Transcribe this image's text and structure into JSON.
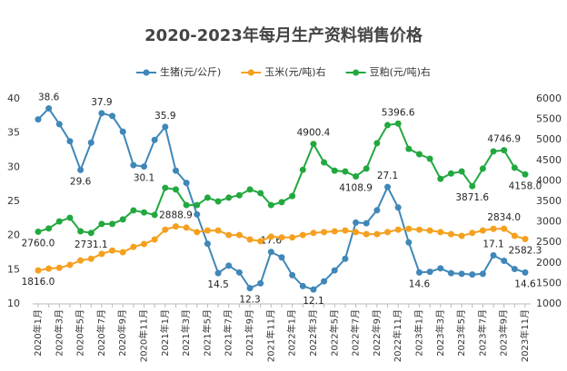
{
  "chart_data": {
    "type": "line",
    "title": "2020-2023年每月生产资料销售价格",
    "categories": [
      "2020年1月",
      null,
      "2020年3月",
      null,
      "2020年5月",
      null,
      "2020年7月",
      null,
      "2020年9月",
      null,
      "2020年11月",
      null,
      "2021年1月",
      null,
      "2021年3月",
      null,
      "2021年5月",
      null,
      "2021年7月",
      null,
      "2021年9月",
      null,
      "2021年11月",
      null,
      "2022年1月",
      null,
      "2022年3月",
      null,
      "2022年5月",
      null,
      "2022年7月",
      null,
      "2022年9月",
      null,
      "2022年11月",
      null,
      "2023年1月",
      null,
      "2023年3月",
      null,
      "2023年5月",
      null,
      "2023年7月",
      null,
      "2023年9月",
      null,
      "2023年11月"
    ],
    "ylim": [
      10,
      40
    ],
    "yticks": [
      10,
      15,
      20,
      25,
      30,
      35,
      40
    ],
    "y2lim": [
      1000,
      6000
    ],
    "y2ticks": [
      1000,
      1500,
      2000,
      2500,
      3000,
      3500,
      4000,
      4500,
      5000,
      5500,
      6000
    ],
    "grid": false,
    "legend": "top",
    "series": [
      {
        "name": "生猪(元/公斤)",
        "color": "#3f87b8",
        "axis": "y",
        "values": [
          37.0,
          38.6,
          36.3,
          33.8,
          29.6,
          33.6,
          37.9,
          37.5,
          35.2,
          30.3,
          30.1,
          34.0,
          35.9,
          29.5,
          27.7,
          23.1,
          18.8,
          14.5,
          15.6,
          14.6,
          12.3,
          13.0,
          17.6,
          16.8,
          14.2,
          12.6,
          12.1,
          13.3,
          14.9,
          16.6,
          21.9,
          21.8,
          23.7,
          27.1,
          24.1,
          19.0,
          14.6,
          14.7,
          15.2,
          14.5,
          14.4,
          14.3,
          14.4,
          17.1,
          16.3,
          15.1,
          14.6
        ],
        "value_labels": [
          null,
          "38.6",
          null,
          null,
          "29.6",
          null,
          "37.9",
          null,
          null,
          null,
          "30.1",
          null,
          "35.9",
          null,
          null,
          null,
          null,
          "14.5",
          null,
          null,
          "12.3",
          null,
          "17.6",
          null,
          null,
          null,
          "12.1",
          null,
          null,
          null,
          null,
          null,
          null,
          "27.1",
          null,
          null,
          "14.6",
          null,
          null,
          null,
          null,
          null,
          null,
          "17.1",
          null,
          null,
          "14.6"
        ]
      },
      {
        "name": "玉米(元/吨)右",
        "color": "#f5a01e",
        "axis": "y2",
        "values": [
          1816.0,
          1860,
          1880,
          1950,
          2060,
          2100,
          2220,
          2300,
          2260,
          2390,
          2460,
          2570,
          2810,
          2888.9,
          2860,
          2750,
          2790,
          2790,
          2680,
          2680,
          2570,
          2530,
          2640,
          2620,
          2620,
          2680,
          2730,
          2750,
          2770,
          2790,
          2750,
          2700,
          2700,
          2750,
          2810,
          2830,
          2810,
          2790,
          2750,
          2700,
          2660,
          2730,
          2790,
          2830,
          2834.0,
          2660,
          2582.3
        ],
        "value_labels": [
          "1816.0",
          null,
          null,
          null,
          null,
          null,
          null,
          null,
          null,
          null,
          null,
          null,
          null,
          "2888.9",
          null,
          null,
          null,
          null,
          null,
          null,
          null,
          null,
          null,
          null,
          null,
          null,
          null,
          null,
          null,
          null,
          null,
          null,
          null,
          null,
          null,
          null,
          null,
          null,
          null,
          null,
          null,
          null,
          null,
          null,
          "2834.0",
          null,
          "2582.3"
        ]
      },
      {
        "name": "豆粕(元/吨)右",
        "color": "#22a83f",
        "axis": "y2",
        "values": [
          2760.0,
          2840,
          3010,
          3100,
          2770,
          2731.1,
          2950,
          2950,
          3060,
          3280,
          3230,
          3170,
          3830,
          3790,
          3410,
          3410,
          3590,
          3500,
          3590,
          3650,
          3790,
          3700,
          3410,
          3480,
          3630,
          4270,
          4900.4,
          4450,
          4250,
          4230,
          4108.9,
          4300,
          4920,
          5360,
          5396.6,
          4780,
          4650,
          4540,
          4050,
          4180,
          4230,
          3871.6,
          4300,
          4720,
          4746.9,
          4320,
          4158.0
        ],
        "value_labels": [
          "2760.0",
          null,
          null,
          null,
          null,
          "2731.1",
          null,
          null,
          null,
          null,
          null,
          null,
          null,
          null,
          null,
          null,
          null,
          null,
          null,
          null,
          null,
          null,
          null,
          null,
          null,
          null,
          "4900.4",
          null,
          null,
          null,
          "4108.9",
          null,
          null,
          null,
          "5396.6",
          null,
          null,
          null,
          null,
          null,
          null,
          "3871.6",
          null,
          null,
          "4746.9",
          null,
          "4158.0"
        ]
      }
    ]
  }
}
